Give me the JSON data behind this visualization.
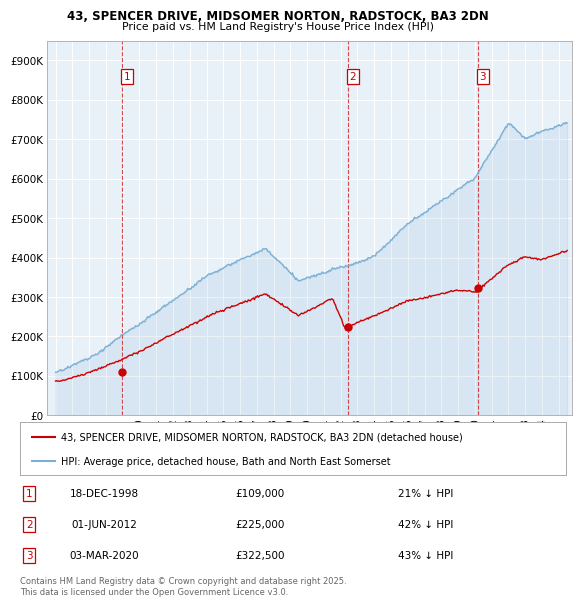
{
  "title_line1": "43, SPENCER DRIVE, MIDSOMER NORTON, RADSTOCK, BA3 2DN",
  "title_line2": "Price paid vs. HM Land Registry's House Price Index (HPI)",
  "legend_line1": "43, SPENCER DRIVE, MIDSOMER NORTON, RADSTOCK, BA3 2DN (detached house)",
  "legend_line2": "HPI: Average price, detached house, Bath and North East Somerset",
  "footer": "Contains HM Land Registry data © Crown copyright and database right 2025.\nThis data is licensed under the Open Government Licence v3.0.",
  "sales": [
    {
      "num": 1,
      "date": "18-DEC-1998",
      "price": 109000,
      "price_str": "£109,000",
      "pct": "21% ↓ HPI",
      "year": 1998.96
    },
    {
      "num": 2,
      "date": "01-JUN-2012",
      "price": 225000,
      "price_str": "£225,000",
      "pct": "42% ↓ HPI",
      "year": 2012.42
    },
    {
      "num": 3,
      "date": "03-MAR-2020",
      "price": 322500,
      "price_str": "£322,500",
      "pct": "43% ↓ HPI",
      "year": 2020.17
    }
  ],
  "property_color": "#cc0000",
  "hpi_color": "#7bafd4",
  "hpi_fill_color": "#ddeeff",
  "vline_color": "#cc0000",
  "dot_color": "#cc0000",
  "background_color": "#ffffff",
  "chart_bg_color": "#e8f0f8",
  "grid_color": "#ffffff",
  "ylim": [
    0,
    950000
  ],
  "xlim": [
    1994.5,
    2025.8
  ],
  "yticks": [
    0,
    100000,
    200000,
    300000,
    400000,
    500000,
    600000,
    700000,
    800000,
    900000
  ],
  "ytick_labels": [
    "£0",
    "£100K",
    "£200K",
    "£300K",
    "£400K",
    "£500K",
    "£600K",
    "£700K",
    "£800K",
    "£900K"
  ],
  "xticks": [
    1995,
    1996,
    1997,
    1998,
    1999,
    2000,
    2001,
    2002,
    2003,
    2004,
    2005,
    2006,
    2007,
    2008,
    2009,
    2010,
    2011,
    2012,
    2013,
    2014,
    2015,
    2016,
    2017,
    2018,
    2019,
    2020,
    2021,
    2022,
    2023,
    2024,
    2025
  ]
}
